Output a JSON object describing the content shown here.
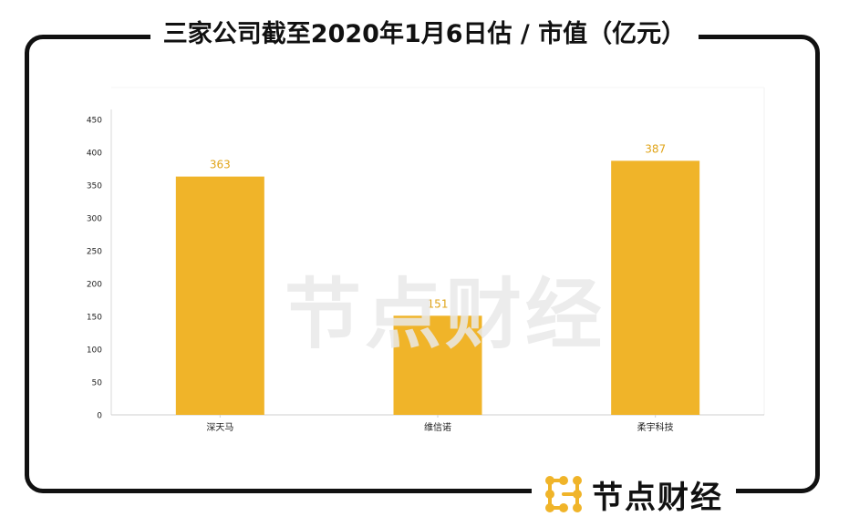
{
  "title": "三家公司截至2020年1月6日估 / 市值（亿元）",
  "watermark": "节点财经",
  "brand": {
    "name": "节点财经",
    "logo_icon": "node-finance-logo-icon",
    "logo_color": "#f0b429"
  },
  "colors": {
    "bar": "#f0b429",
    "data_label": "#e0a419",
    "axis_text": "#222222",
    "frame": "#111111"
  },
  "chart_data": {
    "type": "bar",
    "title": "三家公司截至2020年1月6日估 / 市值（亿元）",
    "categories": [
      "深天马",
      "维信诺",
      "柔宇科技"
    ],
    "values": [
      363,
      151,
      387
    ],
    "data_labels": [
      "363",
      "151",
      "387"
    ],
    "xlabel": "",
    "ylabel": "",
    "ylim": [
      0,
      450
    ],
    "yticks": [
      0,
      50,
      100,
      150,
      200,
      250,
      300,
      350,
      400,
      450
    ],
    "grid": false,
    "legend": "none"
  }
}
